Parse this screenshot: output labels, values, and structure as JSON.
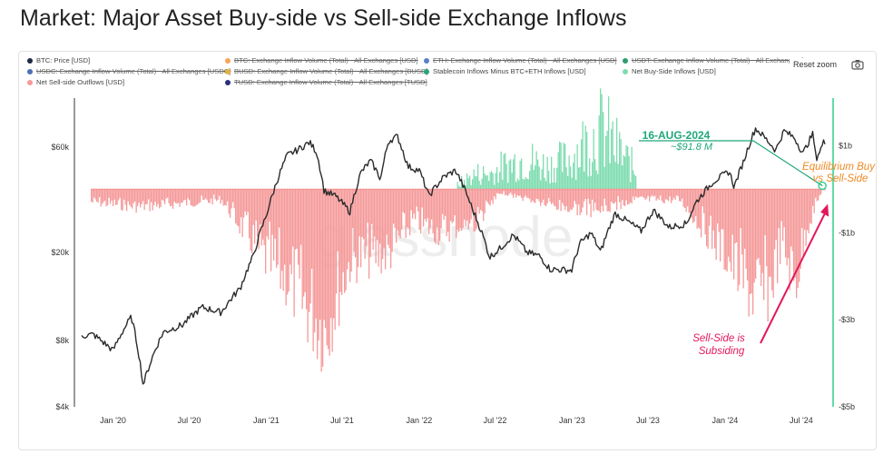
{
  "title": "Market: Major Asset Buy-side vs Sell-side Exchange Inflows",
  "reset_zoom": "Reset zoom",
  "watermark": "glassnode",
  "legend": [
    {
      "label": "BTC: Price [USD]",
      "color": "#1f2a44",
      "active": true
    },
    {
      "label": "BTC: Exchange Inflow Volume (Total) - All Exchanges [USD]",
      "color": "#f5a65b",
      "active": false
    },
    {
      "label": "ETH: Exchange Inflow Volume (Total) - All Exchanges [USD]",
      "color": "#5b7fc7",
      "active": false
    },
    {
      "label": "USDT: Exchange Inflow Volume (Total) - All Exchanges [U",
      "color": "#2e9e6e",
      "active": false
    },
    {
      "label": "USDC: Exchange Inflow Volume (Total) - All Exchanges [USDC]",
      "color": "#4a6fb5",
      "active": false
    },
    {
      "label": "BUSD: Exchange Inflow Volume (Total) - All Exchanges [BUSD]",
      "color": "#e2b33b",
      "active": false
    },
    {
      "label": "Stablecoin Inflows Minus BTC+ETH Inflows [USD]",
      "color": "#27a37a",
      "active": true
    },
    {
      "label": "Net Buy-Side Inflows [USD]",
      "color": "#7fdcb0",
      "active": true
    },
    {
      "label": "Net Sell-side Outflows [USD]",
      "color": "#f59a9a",
      "active": true
    },
    {
      "label": "TUSD: Exchange Inflow Volume (Total) - All Exchanges [TUSD]",
      "color": "#2b2f7a",
      "active": false
    }
  ],
  "annotations": {
    "date_label": "16-AUG-2024",
    "value_label": "~$91.8 M",
    "equilibrium_line1": "Equilibrium Buy",
    "equilibrium_line2": "vs Sell-Side",
    "subsiding_line1": "Sell-Side is",
    "subsiding_line2": "Subsiding"
  },
  "colors": {
    "price": "#2b2b2b",
    "buy": "#7fdcb0",
    "sell": "#f59a9a",
    "annot_green": "#1fa77a",
    "annot_orange": "#f08a24",
    "annot_pink": "#e3175a",
    "right_axis_line": "#2fcf8e"
  },
  "chart_data": {
    "type": "line",
    "title": "Market: Major Asset Buy-side vs Sell-side Exchange Inflows",
    "x_ticks": [
      "Jan '20",
      "Jul '20",
      "Jan '21",
      "Jul '21",
      "Jan '22",
      "Jul '22",
      "Jan '23",
      "Jul '23",
      "Jan '24",
      "Jul '24"
    ],
    "x_range": [
      "2019-10-01",
      "2024-09-15"
    ],
    "left_axis": {
      "scale": "log",
      "ticks": [
        "$4k",
        "$8k",
        "$20k",
        "$60k"
      ],
      "tick_values": [
        4000,
        8000,
        20000,
        60000
      ],
      "range": [
        4000,
        100000
      ]
    },
    "right_axis": {
      "ticks": [
        "$1b",
        "-$1b",
        "-$3b",
        "-$5b"
      ],
      "tick_values": [
        1,
        -1,
        -3,
        -5
      ],
      "range": [
        -5,
        2.1
      ],
      "unit": "billion USD"
    },
    "series": [
      {
        "name": "BTC: Price [USD]",
        "axis": "left",
        "x": [
          "2019-10-01",
          "2019-11-15",
          "2020-01-01",
          "2020-02-14",
          "2020-03-13",
          "2020-04-30",
          "2020-06-15",
          "2020-08-01",
          "2020-09-15",
          "2020-10-31",
          "2020-12-01",
          "2020-12-31",
          "2021-01-15",
          "2021-02-20",
          "2021-03-15",
          "2021-04-14",
          "2021-05-01",
          "2021-05-19",
          "2021-06-15",
          "2021-07-20",
          "2021-08-15",
          "2021-09-07",
          "2021-10-01",
          "2021-10-20",
          "2021-11-10",
          "2021-12-05",
          "2022-01-01",
          "2022-01-24",
          "2022-03-01",
          "2022-03-29",
          "2022-05-09",
          "2022-06-18",
          "2022-07-15",
          "2022-08-14",
          "2022-09-15",
          "2022-10-15",
          "2022-11-09",
          "2022-12-31",
          "2023-01-20",
          "2023-02-15",
          "2023-03-10",
          "2023-04-14",
          "2023-06-15",
          "2023-07-14",
          "2023-08-20",
          "2023-10-01",
          "2023-10-25",
          "2023-12-05",
          "2024-01-11",
          "2024-01-23",
          "2024-02-15",
          "2024-03-14",
          "2024-04-15",
          "2024-05-01",
          "2024-05-21",
          "2024-06-15",
          "2024-07-05",
          "2024-07-29",
          "2024-08-05",
          "2024-08-16",
          "2024-08-25",
          "2024-09-06",
          "2024-09-15"
        ],
        "y": [
          8300,
          8500,
          7200,
          10200,
          5000,
          8700,
          9400,
          11300,
          10700,
          13800,
          19200,
          29000,
          36000,
          55000,
          58000,
          63000,
          57000,
          38000,
          36000,
          30500,
          46000,
          52000,
          43000,
          64000,
          67000,
          49000,
          47000,
          36000,
          44000,
          47000,
          31000,
          19000,
          21000,
          24000,
          20000,
          19300,
          16800,
          16600,
          22000,
          24500,
          20000,
          30000,
          25000,
          31000,
          26000,
          27000,
          34000,
          42000,
          46500,
          39500,
          52000,
          73000,
          63000,
          58000,
          71000,
          66000,
          56000,
          69000,
          53000,
          58500,
          64000,
          53500,
          60000
        ]
      },
      {
        "name": "Net Buy-Side Inflows [USD]",
        "axis": "right",
        "style": "area",
        "x": [
          "2022-04-01",
          "2022-05-15",
          "2022-06-15",
          "2022-09-01",
          "2022-11-01",
          "2022-12-15",
          "2023-02-15",
          "2023-03-15",
          "2023-04-15",
          "2023-06-01"
        ],
        "y": [
          0.2,
          0.6,
          0.6,
          1.2,
          0.9,
          1.1,
          2.0,
          2.3,
          1.6,
          0.7
        ]
      },
      {
        "name": "Net Sell-side Outflows [USD]",
        "axis": "right",
        "style": "area",
        "x": [
          "2019-10-01",
          "2020-03-01",
          "2020-09-15",
          "2020-12-31",
          "2021-02-15",
          "2021-05-19",
          "2021-07-20",
          "2021-10-20",
          "2021-12-15",
          "2022-02-15",
          "2022-05-15",
          "2022-07-15",
          "2022-12-01",
          "2023-03-01",
          "2023-06-01",
          "2023-09-15",
          "2024-01-11",
          "2024-03-14",
          "2024-04-15",
          "2024-05-15",
          "2024-06-15",
          "2024-07-15",
          "2024-08-16"
        ],
        "y": [
          -0.3,
          -0.5,
          -0.3,
          -2.0,
          -2.5,
          -4.0,
          -2.0,
          -1.8,
          -0.9,
          -1.2,
          -0.9,
          -0.1,
          -0.5,
          -0.6,
          -0.3,
          -0.3,
          -2.0,
          -3.1,
          -2.8,
          -1.5,
          -2.7,
          -1.0,
          -0.1
        ]
      }
    ]
  }
}
